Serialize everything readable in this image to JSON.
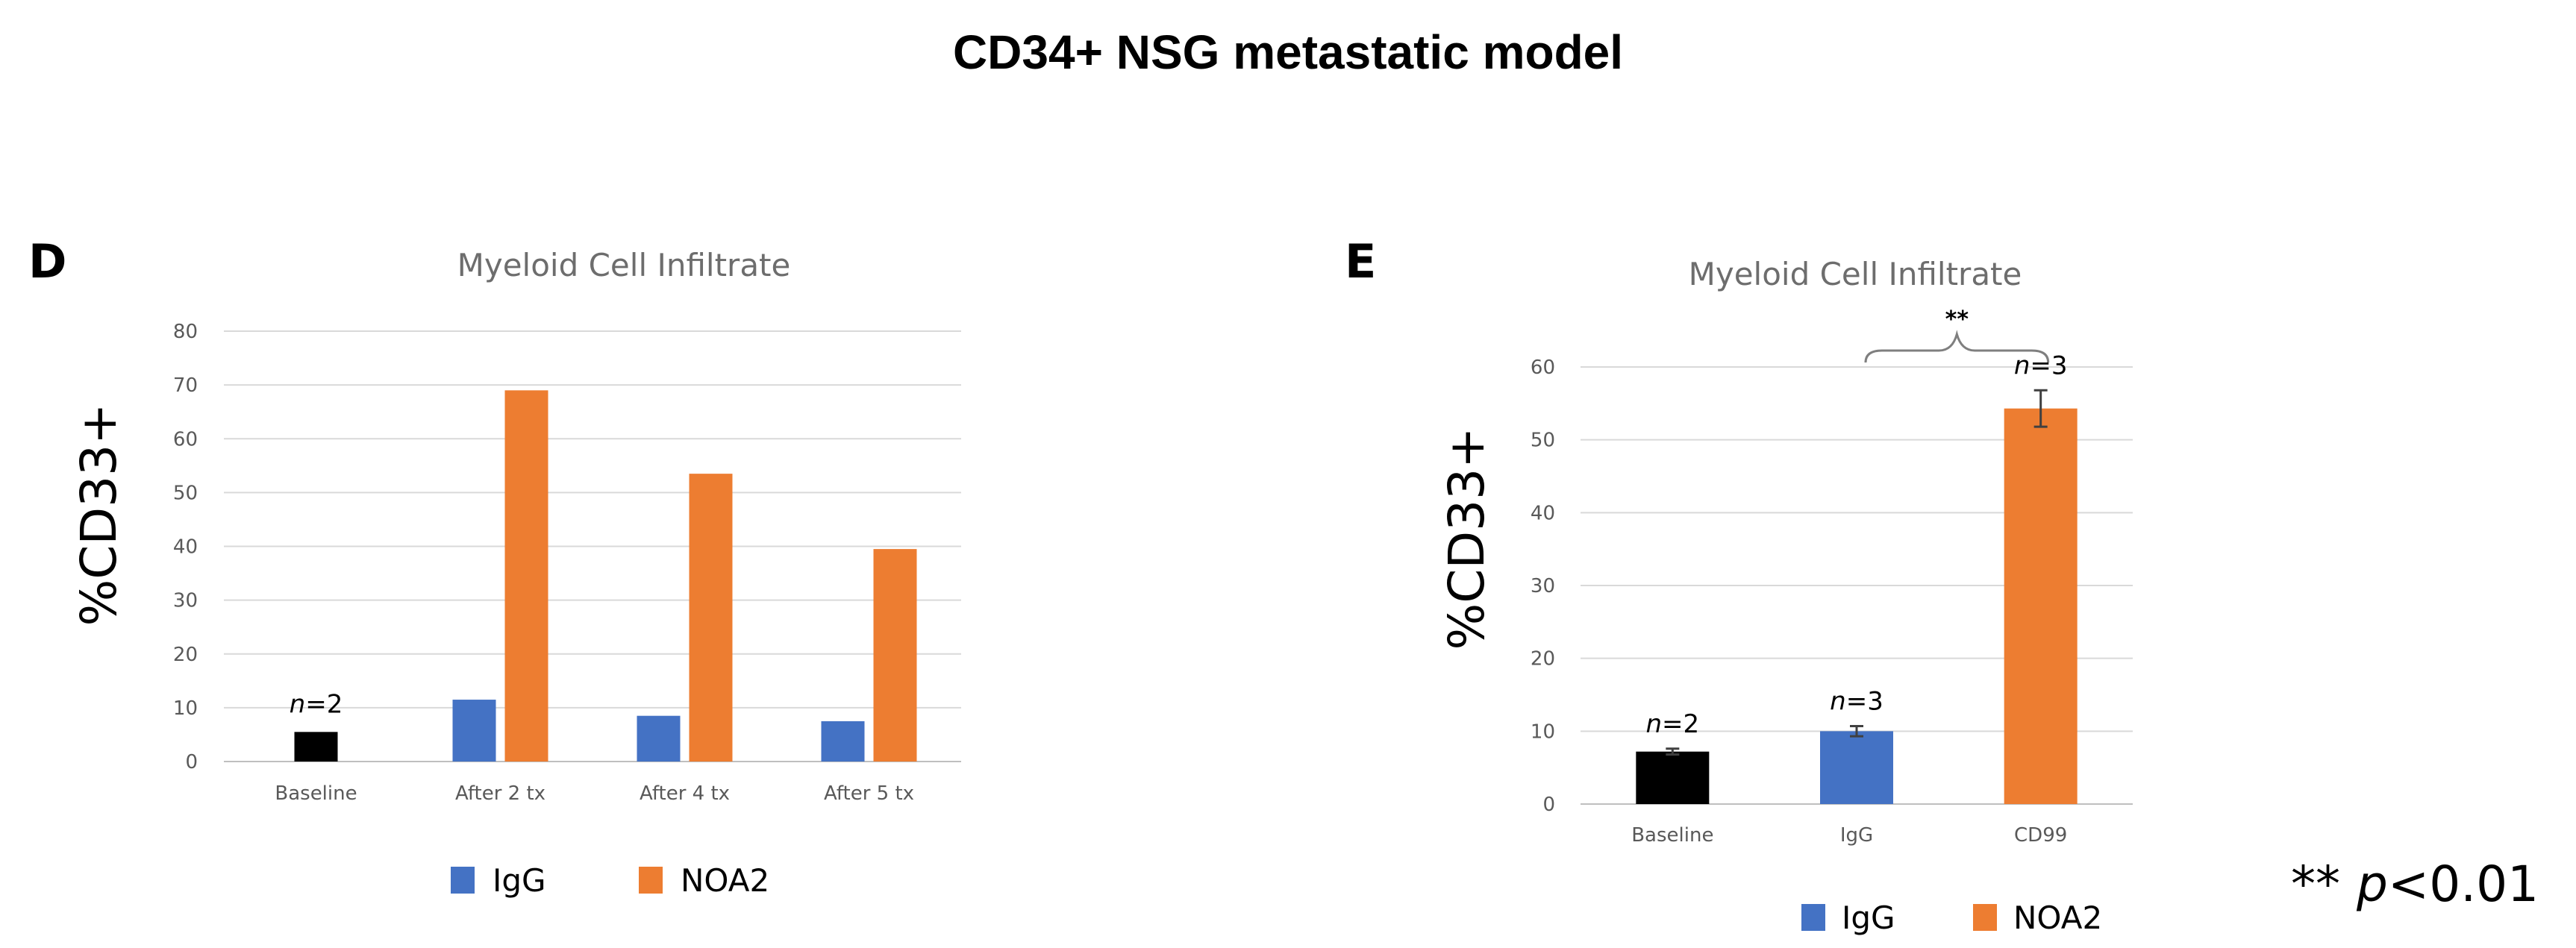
{
  "figure_title": "CD34+ NSG metastatic model",
  "significance_note": {
    "stars": "**",
    "p": "p",
    "threshold": "<0.01"
  },
  "colors": {
    "black": "#000000",
    "igg": "#4472C4",
    "noa2": "#ED7D31"
  },
  "chart_data": [
    {
      "panel": "D",
      "type": "bar",
      "title": "Myeloid Cell Infiltrate",
      "ylabel": "%CD33+",
      "ylim": [
        0,
        80
      ],
      "yticks": [
        0,
        10,
        20,
        30,
        40,
        50,
        60,
        70,
        80
      ],
      "grid": true,
      "categories": [
        "Baseline",
        "After 2 tx",
        "After 4 tx",
        "After 5 tx"
      ],
      "bars": [
        {
          "category": 0,
          "slot": "center",
          "value": 5.5,
          "color": "black"
        },
        {
          "category": 1,
          "slot": "left",
          "value": 11.5,
          "color": "igg"
        },
        {
          "category": 1,
          "slot": "right",
          "value": 69,
          "color": "noa2"
        },
        {
          "category": 2,
          "slot": "left",
          "value": 8.5,
          "color": "igg"
        },
        {
          "category": 2,
          "slot": "right",
          "value": 53.5,
          "color": "noa2"
        },
        {
          "category": 3,
          "slot": "left",
          "value": 7.5,
          "color": "igg"
        },
        {
          "category": 3,
          "slot": "right",
          "value": 39.5,
          "color": "noa2"
        }
      ],
      "annotations": [
        {
          "category": 0,
          "n_label": "n",
          "n_value": "=2",
          "at_value": 5.5
        }
      ],
      "legend": [
        {
          "label": "IgG",
          "color": "igg"
        },
        {
          "label": "NOA2",
          "color": "noa2"
        }
      ]
    },
    {
      "panel": "E",
      "type": "bar",
      "title": "Myeloid Cell Infiltrate",
      "ylabel": "%CD33+",
      "ylim": [
        0,
        60
      ],
      "yticks": [
        0,
        10,
        20,
        30,
        40,
        50,
        60
      ],
      "grid": true,
      "categories": [
        "Baseline",
        "IgG",
        "CD99"
      ],
      "bars": [
        {
          "category": 0,
          "value": 7.2,
          "error": 0.4,
          "color": "black"
        },
        {
          "category": 1,
          "value": 10.0,
          "error": 0.7,
          "color": "igg"
        },
        {
          "category": 2,
          "value": 54.3,
          "error": 2.5,
          "color": "noa2"
        }
      ],
      "annotations": [
        {
          "category": 0,
          "n_label": "n",
          "n_value": "=2",
          "at_value": 7.6
        },
        {
          "category": 1,
          "n_label": "n",
          "n_value": "=3",
          "at_value": 10.7
        },
        {
          "category": 2,
          "n_label": "n",
          "n_value": "=3",
          "at_value": 56.8
        }
      ],
      "significance": {
        "from_category": 1,
        "to_category": 2,
        "label": "**"
      },
      "legend": [
        {
          "label": "IgG",
          "color": "igg"
        },
        {
          "label": "NOA2",
          "color": "noa2"
        }
      ]
    }
  ]
}
